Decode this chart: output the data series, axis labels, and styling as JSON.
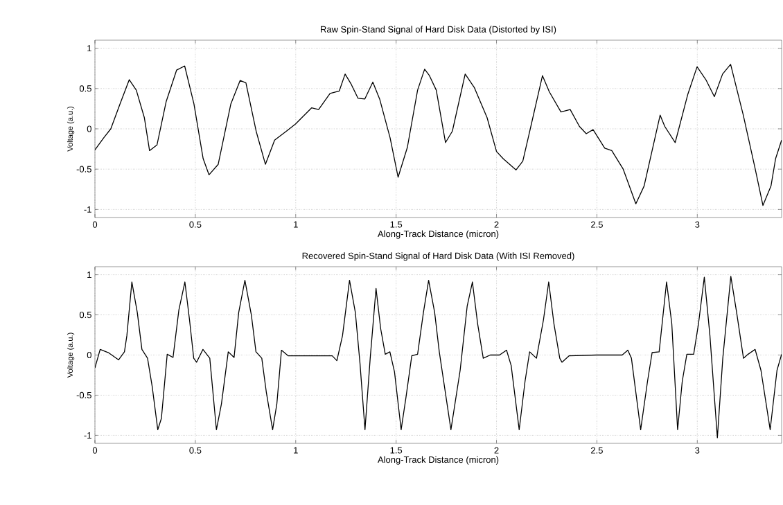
{
  "chart_data": [
    {
      "type": "line",
      "title": "Raw Spin-Stand Signal of Hard Disk Data (Distorted by ISI)",
      "xlabel": "Along-Track Distance (micron)",
      "ylabel": "Voltage (a.u.)",
      "color": "#000000",
      "x": [
        0,
        0.044,
        0.079,
        0.125,
        0.171,
        0.206,
        0.246,
        0.272,
        0.309,
        0.355,
        0.407,
        0.447,
        0.493,
        0.539,
        0.568,
        0.614,
        0.677,
        0.723,
        0.752,
        0.803,
        0.849,
        0.895,
        0.953,
        0.999,
        1.079,
        1.114,
        1.171,
        1.217,
        1.246,
        1.275,
        1.31,
        1.344,
        1.384,
        1.418,
        1.47,
        1.51,
        1.556,
        1.607,
        1.642,
        1.666,
        1.7,
        1.746,
        1.78,
        1.844,
        1.89,
        1.953,
        2.0,
        2.033,
        2.097,
        2.131,
        2.171,
        2.229,
        2.263,
        2.321,
        2.367,
        2.413,
        2.447,
        2.481,
        2.539,
        2.574,
        2.631,
        2.694,
        2.735,
        2.815,
        2.838,
        2.89,
        2.953,
        2.999,
        3.045,
        3.085,
        3.126,
        3.166,
        3.229,
        3.287,
        3.327,
        3.367,
        3.39,
        3.42
      ],
      "values": [
        -0.26,
        -0.11,
        0,
        0.31,
        0.61,
        0.48,
        0.14,
        -0.27,
        -0.2,
        0.34,
        0.73,
        0.78,
        0.31,
        -0.37,
        -0.57,
        -0.44,
        0.31,
        0.6,
        0.57,
        -0.03,
        -0.44,
        -0.14,
        -0.03,
        0.06,
        0.26,
        0.24,
        0.44,
        0.47,
        0.68,
        0.56,
        0.38,
        0.37,
        0.58,
        0.37,
        -0.11,
        -0.6,
        -0.23,
        0.48,
        0.74,
        0.66,
        0.48,
        -0.17,
        -0.03,
        0.68,
        0.51,
        0.14,
        -0.28,
        -0.37,
        -0.51,
        -0.4,
        0.03,
        0.66,
        0.46,
        0.21,
        0.24,
        0.03,
        -0.06,
        -0.01,
        -0.24,
        -0.27,
        -0.5,
        -0.93,
        -0.71,
        0.17,
        0.03,
        -0.17,
        0.43,
        0.77,
        0.6,
        0.4,
        0.68,
        0.8,
        0.17,
        -0.48,
        -0.95,
        -0.71,
        -0.37,
        -0.14
      ],
      "xlim": [
        0,
        3.42
      ],
      "ylim": [
        -1.1,
        1.1
      ],
      "xticks": [
        0,
        0.5,
        1,
        1.5,
        2,
        2.5,
        3
      ],
      "yticks": [
        -1,
        -0.5,
        0,
        0.5,
        1
      ],
      "grid": true
    },
    {
      "type": "line",
      "title": "Recovered Spin-Stand Signal of Hard Disk Data (With ISI Removed)",
      "xlabel": "Along-Track Distance (micron)",
      "ylabel": "Voltage (a.u.)",
      "color": "#000000",
      "x": [
        0,
        0.026,
        0.067,
        0.118,
        0.147,
        0.159,
        0.184,
        0.211,
        0.234,
        0.262,
        0.285,
        0.313,
        0.331,
        0.36,
        0.389,
        0.418,
        0.448,
        0.471,
        0.492,
        0.506,
        0.538,
        0.572,
        0.605,
        0.63,
        0.664,
        0.693,
        0.716,
        0.747,
        0.779,
        0.802,
        0.831,
        0.854,
        0.885,
        0.906,
        0.929,
        0.963,
        1.182,
        1.205,
        1.233,
        1.268,
        1.297,
        1.32,
        1.345,
        1.371,
        1.4,
        1.423,
        1.446,
        1.469,
        1.492,
        1.525,
        1.549,
        1.578,
        1.607,
        1.636,
        1.662,
        1.692,
        1.715,
        1.773,
        1.819,
        1.854,
        1.88,
        1.906,
        1.934,
        1.969,
        2.015,
        2.05,
        2.073,
        2.113,
        2.142,
        2.165,
        2.199,
        2.234,
        2.26,
        2.286,
        2.315,
        2.326,
        2.361,
        2.499,
        2.626,
        2.654,
        2.672,
        2.718,
        2.752,
        2.775,
        2.81,
        2.847,
        2.873,
        2.902,
        2.925,
        2.948,
        2.982,
        3.006,
        3.035,
        3.063,
        3.1,
        3.127,
        3.167,
        3.196,
        3.23,
        3.253,
        3.288,
        3.317,
        3.363,
        3.397,
        3.42
      ],
      "values": [
        -0.16,
        0.07,
        0.03,
        -0.06,
        0.04,
        0.24,
        0.91,
        0.53,
        0.07,
        -0.04,
        -0.39,
        -0.93,
        -0.79,
        0.01,
        -0.03,
        0.56,
        0.91,
        0.44,
        -0.04,
        -0.09,
        0.07,
        -0.04,
        -0.93,
        -0.61,
        0.04,
        -0.03,
        0.53,
        0.93,
        0.5,
        0.04,
        -0.04,
        -0.47,
        -0.93,
        -0.61,
        0.06,
        -0.01,
        -0.01,
        -0.07,
        0.24,
        0.93,
        0.53,
        -0.1,
        -0.93,
        -0.04,
        0.83,
        0.33,
        0.01,
        0.04,
        -0.21,
        -0.93,
        -0.53,
        -0.01,
        0.01,
        0.53,
        0.93,
        0.53,
        0.04,
        -0.93,
        -0.19,
        0.61,
        0.91,
        0.39,
        -0.04,
        0,
        0,
        0.06,
        -0.13,
        -0.93,
        -0.33,
        0.04,
        -0.04,
        0.44,
        0.91,
        0.39,
        -0.04,
        -0.09,
        -0.01,
        0,
        0,
        0.06,
        -0.04,
        -0.93,
        -0.33,
        0.03,
        0.04,
        0.91,
        0.39,
        -0.93,
        -0.33,
        0.01,
        0.01,
        0.39,
        0.97,
        0.24,
        -1.03,
        -0.04,
        0.98,
        0.53,
        -0.04,
        0.01,
        0.07,
        -0.19,
        -0.93,
        -0.19,
        0.01
      ],
      "xlim": [
        0,
        3.42
      ],
      "ylim": [
        -1.1,
        1.1
      ],
      "xticks": [
        0,
        0.5,
        1,
        1.5,
        2,
        2.5,
        3
      ],
      "yticks": [
        -1,
        -0.5,
        0,
        0.5,
        1
      ],
      "grid": true
    }
  ]
}
